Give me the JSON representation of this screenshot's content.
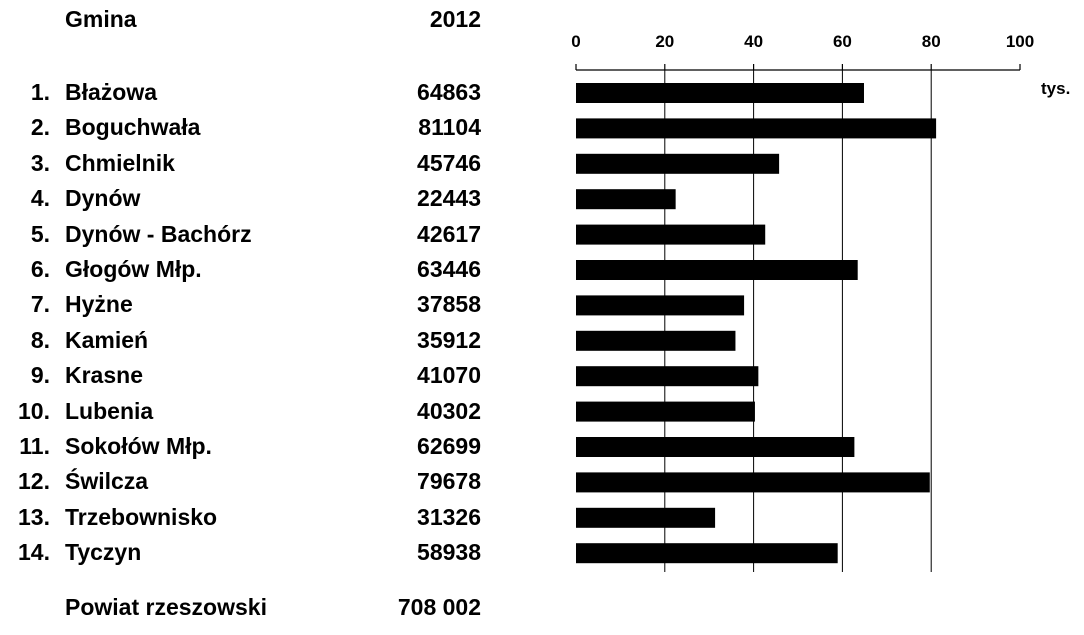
{
  "table": {
    "header_name": "Gmina",
    "header_year": "2012"
  },
  "chart_data": {
    "type": "bar",
    "orientation": "horizontal",
    "categories": [
      "Błażowa",
      "Boguchwała",
      "Chmielnik",
      "Dynów",
      "Dynów - Bachórz",
      "Głogów Młp.",
      "Hyżne",
      "Kamień",
      "Krasne",
      "Lubenia",
      "Sokołów Młp.",
      "Świlcza",
      "Trzebownisko",
      "Tyczyn"
    ],
    "ranks": [
      "1.",
      "2.",
      "3.",
      "4.",
      "5.",
      "6.",
      "7.",
      "8.",
      "9.",
      "10.",
      "11.",
      "12.",
      "13.",
      "14."
    ],
    "value_labels": [
      "64863",
      "81104",
      "45746",
      "22443",
      "42617",
      "63446",
      "37858",
      "35912",
      "41070",
      "40302",
      "62699",
      "79678",
      "31326",
      "58938"
    ],
    "values": [
      64.863,
      81.104,
      45.746,
      22.443,
      42.617,
      63.446,
      37.858,
      35.912,
      41.07,
      40.302,
      62.699,
      79.678,
      31.326,
      58.938
    ],
    "xlim": [
      0,
      100
    ],
    "xticks": [
      "0",
      "20",
      "40",
      "60",
      "80",
      "100"
    ],
    "unit": "tys.",
    "grid": "vertical at 20, 40, 60, 80",
    "bar_color": "#000000",
    "title": "",
    "xlabel": "",
    "ylabel": ""
  },
  "total": {
    "label": "Powiat rzeszowski",
    "value": "708 002"
  }
}
